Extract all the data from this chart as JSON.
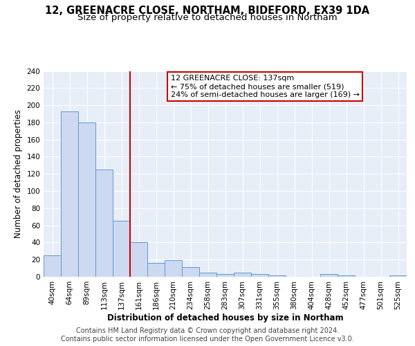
{
  "title_line1": "12, GREENACRE CLOSE, NORTHAM, BIDEFORD, EX39 1DA",
  "title_line2": "Size of property relative to detached houses in Northam",
  "xlabel": "Distribution of detached houses by size in Northam",
  "ylabel": "Number of detached properties",
  "bin_labels": [
    "40sqm",
    "64sqm",
    "89sqm",
    "113sqm",
    "137sqm",
    "161sqm",
    "186sqm",
    "210sqm",
    "234sqm",
    "258sqm",
    "283sqm",
    "307sqm",
    "331sqm",
    "355sqm",
    "380sqm",
    "404sqm",
    "428sqm",
    "452sqm",
    "477sqm",
    "501sqm",
    "525sqm"
  ],
  "bar_heights": [
    25,
    193,
    180,
    125,
    65,
    40,
    16,
    19,
    11,
    5,
    3,
    5,
    3,
    2,
    0,
    0,
    3,
    2,
    0,
    0,
    2
  ],
  "bar_color": "#ccd9f0",
  "bar_edge_color": "#5b9bd5",
  "marker_index": 4,
  "marker_color": "#cc0000",
  "annotation_line1": "12 GREENACRE CLOSE: 137sqm",
  "annotation_line2": "← 75% of detached houses are smaller (519)",
  "annotation_line3": "24% of semi-detached houses are larger (169) →",
  "annotation_box_color": "#ffffff",
  "annotation_box_edge": "#cc0000",
  "footer_text": "Contains HM Land Registry data © Crown copyright and database right 2024.\nContains public sector information licensed under the Open Government Licence v3.0.",
  "ylim": [
    0,
    240
  ],
  "yticks": [
    0,
    20,
    40,
    60,
    80,
    100,
    120,
    140,
    160,
    180,
    200,
    220,
    240
  ],
  "background_color": "#e8eef8",
  "grid_color": "#ffffff",
  "title_fontsize": 10.5,
  "subtitle_fontsize": 9.5,
  "axis_label_fontsize": 8.5,
  "tick_fontsize": 7.5,
  "annotation_fontsize": 8,
  "footer_fontsize": 7
}
